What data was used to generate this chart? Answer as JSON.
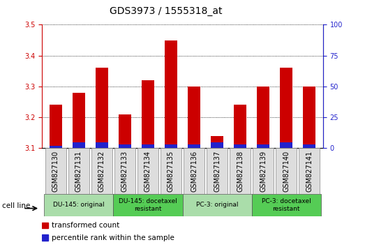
{
  "title": "GDS3973 / 1555318_at",
  "samples": [
    "GSM827130",
    "GSM827131",
    "GSM827132",
    "GSM827133",
    "GSM827134",
    "GSM827135",
    "GSM827136",
    "GSM827137",
    "GSM827138",
    "GSM827139",
    "GSM827140",
    "GSM827141"
  ],
  "transformed_count": [
    3.24,
    3.28,
    3.36,
    3.21,
    3.32,
    3.45,
    3.3,
    3.14,
    3.24,
    3.3,
    3.36,
    3.3
  ],
  "percentile_rank": [
    2,
    5,
    5,
    3,
    3,
    3,
    3,
    5,
    3,
    3,
    5,
    3
  ],
  "ylim_left": [
    3.1,
    3.5
  ],
  "ylim_right": [
    0,
    100
  ],
  "yticks_left": [
    3.1,
    3.2,
    3.3,
    3.4,
    3.5
  ],
  "yticks_right": [
    0,
    25,
    50,
    75,
    100
  ],
  "bar_bottom": 3.1,
  "red_color": "#cc0000",
  "blue_color": "#2222cc",
  "groups": [
    {
      "label": "DU-145: original",
      "cols": [
        0,
        1,
        2
      ],
      "color": "#aaddaa"
    },
    {
      "label": "DU-145: docetaxel\nresistant",
      "cols": [
        3,
        4,
        5
      ],
      "color": "#55cc55"
    },
    {
      "label": "PC-3: original",
      "cols": [
        6,
        7,
        8
      ],
      "color": "#aaddaa"
    },
    {
      "label": "PC-3: docetaxel\nresistant",
      "cols": [
        9,
        10,
        11
      ],
      "color": "#55cc55"
    }
  ],
  "legend_red": "transformed count",
  "legend_blue": "percentile rank within the sample",
  "cell_line_label": "cell line",
  "bar_width": 0.55,
  "title_fontsize": 10,
  "tick_fontsize": 7,
  "label_fontsize": 7.5
}
